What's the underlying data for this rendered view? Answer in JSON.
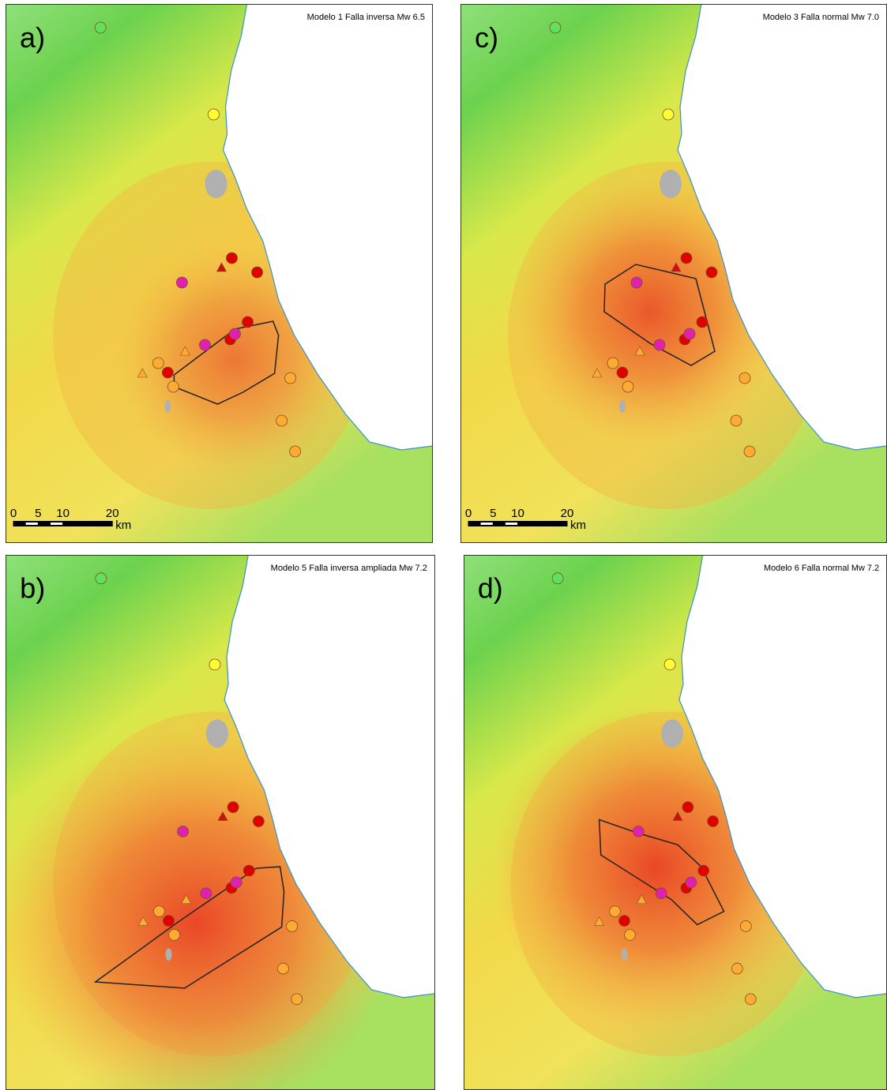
{
  "panels": [
    {
      "label": "a)",
      "title": "Modelo 1 Falla inversa Mw 6.5",
      "scale_bar": {
        "ticks": [
          0,
          5,
          10,
          20
        ],
        "unit": "km"
      }
    },
    {
      "label": "b)",
      "title": "Modelo 5 Falla inversa ampliada Mw 7.2"
    },
    {
      "label": "c)",
      "title": "Modelo 3 Falla normal Mw 7.0",
      "scale_bar": {
        "ticks": [
          0,
          5,
          10,
          20
        ],
        "unit": "km"
      }
    },
    {
      "label": "d)",
      "title": "Modelo 6 Falla normal Mw 7.2"
    }
  ]
}
